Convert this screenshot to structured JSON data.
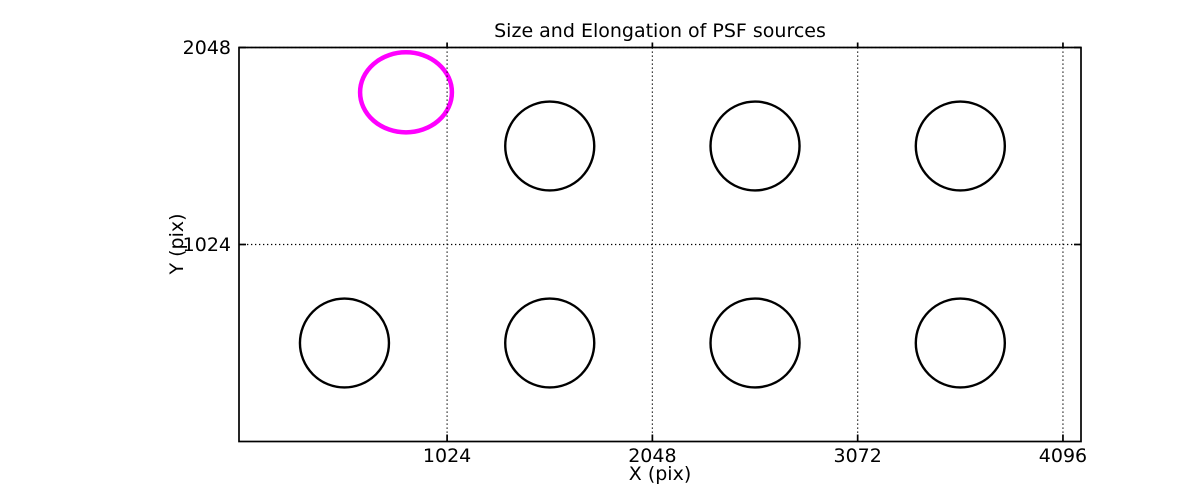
{
  "background_color": "#ffffff",
  "chart_data": {
    "type": "scatter",
    "title": "Size and Elongation of PSF sources",
    "xlabel": "X (pix)",
    "ylabel": "Y (pix)",
    "xlim": [
      -14,
      4186
    ],
    "ylim": [
      0,
      2048
    ],
    "xticks": [
      1024,
      2048,
      3072,
      4096
    ],
    "yticks": [
      1024,
      2048
    ],
    "grid": {
      "style": "dotted",
      "color": "#000000",
      "x_at": [
        1024,
        2048,
        3072,
        4096
      ],
      "y_at": [
        1024,
        2048
      ]
    },
    "axes_color": "#000000",
    "legend": "none",
    "sources": [
      {
        "x": 819,
        "y": 1815,
        "rx": 229,
        "ry": 208,
        "color": "#ff00ff",
        "line_width": 4.5,
        "highlight": true
      },
      {
        "x": 1536,
        "y": 1536,
        "rx": 222,
        "ry": 231,
        "color": "#000000",
        "line_width": 2.4,
        "highlight": false
      },
      {
        "x": 2560,
        "y": 1536,
        "rx": 222,
        "ry": 231,
        "color": "#000000",
        "line_width": 2.4,
        "highlight": false
      },
      {
        "x": 3584,
        "y": 1536,
        "rx": 222,
        "ry": 231,
        "color": "#000000",
        "line_width": 2.4,
        "highlight": false
      },
      {
        "x": 512,
        "y": 512,
        "rx": 222,
        "ry": 231,
        "color": "#000000",
        "line_width": 2.4,
        "highlight": false
      },
      {
        "x": 1536,
        "y": 512,
        "rx": 222,
        "ry": 231,
        "color": "#000000",
        "line_width": 2.4,
        "highlight": false
      },
      {
        "x": 2560,
        "y": 512,
        "rx": 222,
        "ry": 231,
        "color": "#000000",
        "line_width": 2.4,
        "highlight": false
      },
      {
        "x": 3584,
        "y": 512,
        "rx": 222,
        "ry": 231,
        "color": "#000000",
        "line_width": 2.4,
        "highlight": false
      }
    ]
  }
}
